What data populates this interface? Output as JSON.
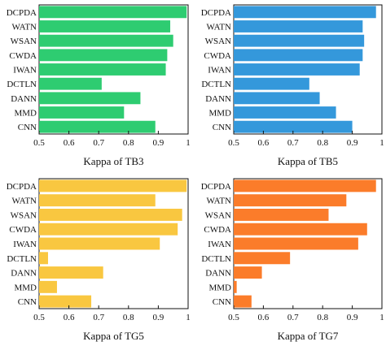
{
  "chart_data": [
    {
      "type": "bar",
      "orientation": "horizontal",
      "title": "",
      "xlabel": "Kappa of TB3",
      "ylabel": "",
      "xlim": [
        0.5,
        1
      ],
      "xticks": [
        "0.5",
        "0.6",
        "0.7",
        "0.8",
        "0.9",
        "1"
      ],
      "categories": [
        "DCPDA",
        "WATN",
        "WSAN",
        "CWDA",
        "IWAN",
        "DCTLN",
        "DANN",
        "MMD",
        "CNN"
      ],
      "values": [
        0.995,
        0.94,
        0.95,
        0.93,
        0.925,
        0.71,
        0.84,
        0.785,
        0.89
      ],
      "color": "#2ecc71",
      "grid": false
    },
    {
      "type": "bar",
      "orientation": "horizontal",
      "title": "",
      "xlabel": "Kappa of TB5",
      "ylabel": "",
      "xlim": [
        0.5,
        1
      ],
      "xticks": [
        "0.5",
        "0.6",
        "0.7",
        "0.8",
        "0.9",
        "1"
      ],
      "categories": [
        "DCPDA",
        "WATN",
        "WSAN",
        "CWDA",
        "IWAN",
        "DCTLN",
        "DANN",
        "MMD",
        "CNN"
      ],
      "values": [
        0.98,
        0.935,
        0.94,
        0.935,
        0.925,
        0.755,
        0.79,
        0.845,
        0.9
      ],
      "color": "#3498db",
      "grid": false
    },
    {
      "type": "bar",
      "orientation": "horizontal",
      "title": "",
      "xlabel": "Kappa of TG5",
      "ylabel": "",
      "xlim": [
        0.5,
        1
      ],
      "xticks": [
        "0.5",
        "0.6",
        "0.7",
        "0.8",
        "0.9",
        "1"
      ],
      "categories": [
        "DCPDA",
        "WATN",
        "WSAN",
        "CWDA",
        "IWAN",
        "DCTLN",
        "DANN",
        "MMD",
        "CNN"
      ],
      "values": [
        0.995,
        0.89,
        0.98,
        0.965,
        0.905,
        0.53,
        0.715,
        0.56,
        0.675
      ],
      "color": "#f9c740",
      "grid": false
    },
    {
      "type": "bar",
      "orientation": "horizontal",
      "title": "",
      "xlabel": "Kappa of TG7",
      "ylabel": "",
      "xlim": [
        0.5,
        1
      ],
      "xticks": [
        "0.5",
        "0.6",
        "0.7",
        "0.8",
        "0.9",
        "1"
      ],
      "categories": [
        "DCPDA",
        "WATN",
        "WSAN",
        "CWDA",
        "IWAN",
        "DCTLN",
        "DANN",
        "MMD",
        "CNN"
      ],
      "values": [
        0.98,
        0.88,
        0.82,
        0.95,
        0.92,
        0.69,
        0.595,
        0.51,
        0.56
      ],
      "color": "#fb7c2a",
      "grid": false
    }
  ]
}
